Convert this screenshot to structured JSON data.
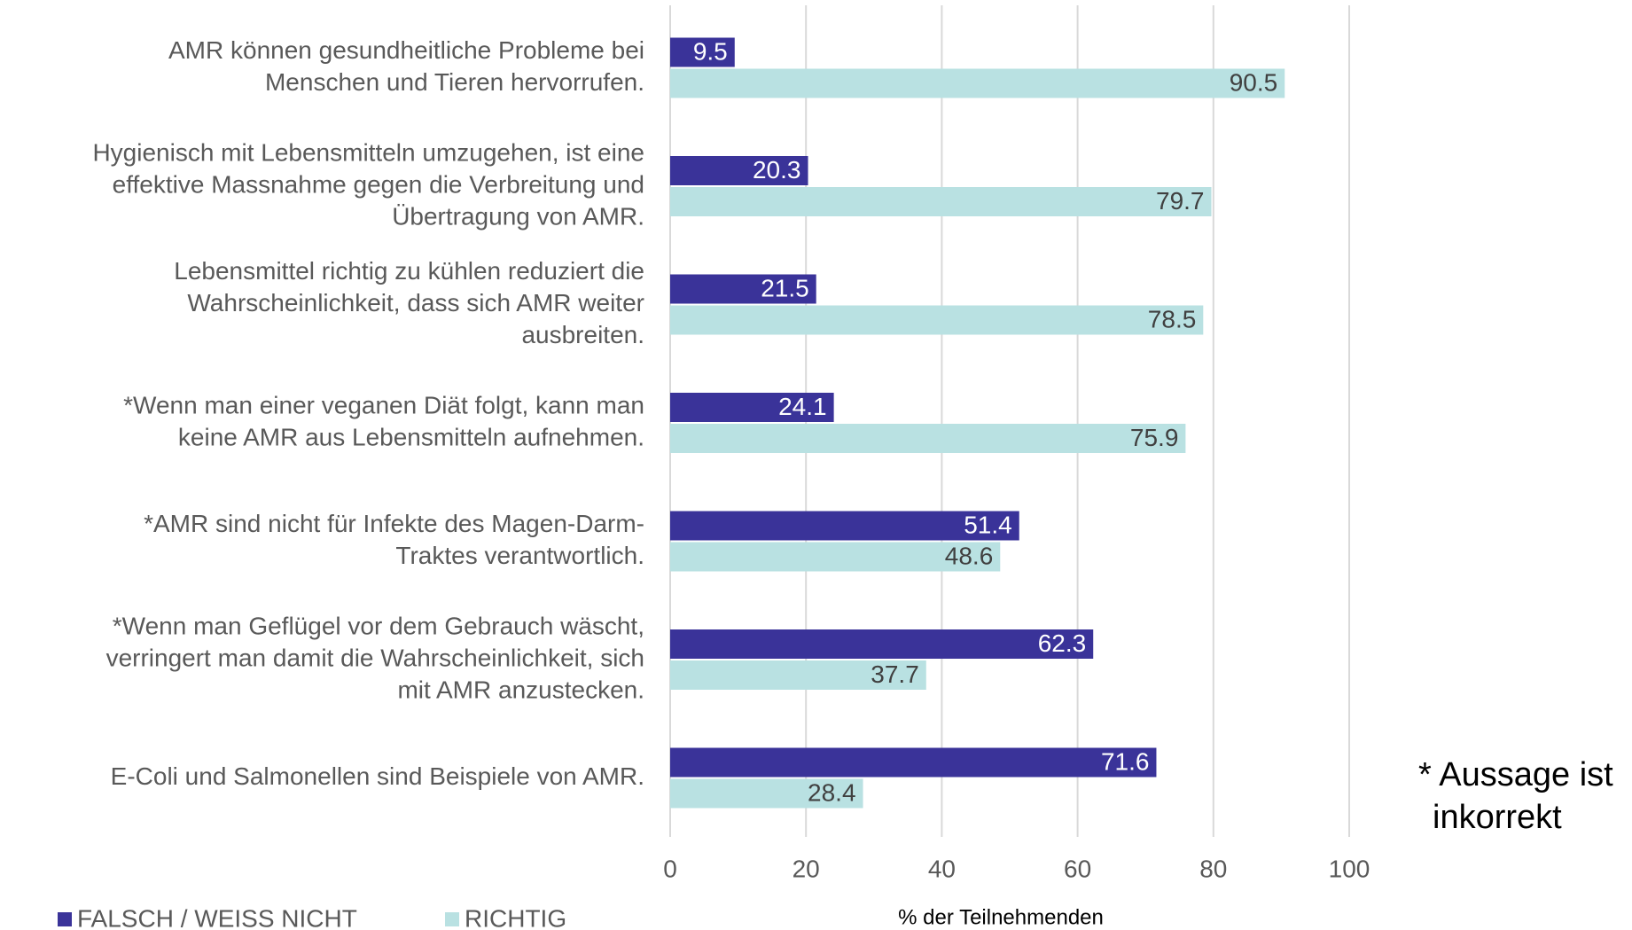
{
  "chart_data": {
    "type": "bar",
    "orientation": "horizontal",
    "categories": [
      [
        "AMR können gesundheitliche Probleme bei",
        "Menschen und Tieren hervorrufen."
      ],
      [
        "Hygienisch mit Lebensmitteln umzugehen, ist eine",
        "effektive Massnahme gegen die Verbreitung und",
        "Übertragung von AMR."
      ],
      [
        "Lebensmittel richtig zu kühlen reduziert die",
        "Wahrscheinlichkeit, dass sich AMR weiter",
        "ausbreiten."
      ],
      [
        "*Wenn man einer veganen Diät folgt, kann man",
        "keine AMR aus Lebensmitteln aufnehmen."
      ],
      [
        "*AMR sind nicht für Infekte des Magen-Darm-",
        "Traktes verantwortlich."
      ],
      [
        "*Wenn man Geflügel vor dem Gebrauch wäscht,",
        "verringert man damit die Wahrscheinlichkeit, sich",
        "mit AMR anzustecken."
      ],
      [
        "E-Coli und Salmonellen sind Beispiele von AMR."
      ]
    ],
    "series": [
      {
        "name": "FALSCH / WEISS NICHT",
        "color": "#3a3399",
        "values": [
          9.5,
          20.3,
          21.5,
          24.1,
          51.4,
          62.3,
          71.6
        ]
      },
      {
        "name": "RICHTIG",
        "color": "#b9e1e2",
        "values": [
          90.5,
          79.7,
          78.5,
          75.9,
          48.6,
          37.7,
          28.4
        ]
      }
    ],
    "xlim": [
      0,
      100
    ],
    "xticks": [
      0,
      20,
      40,
      60,
      80,
      100
    ],
    "grid": true,
    "xlabel": "% der Teilnehmenden",
    "annotation": [
      "* Aussage ist",
      "inkorrekt"
    ],
    "legend": "bottom-left"
  }
}
